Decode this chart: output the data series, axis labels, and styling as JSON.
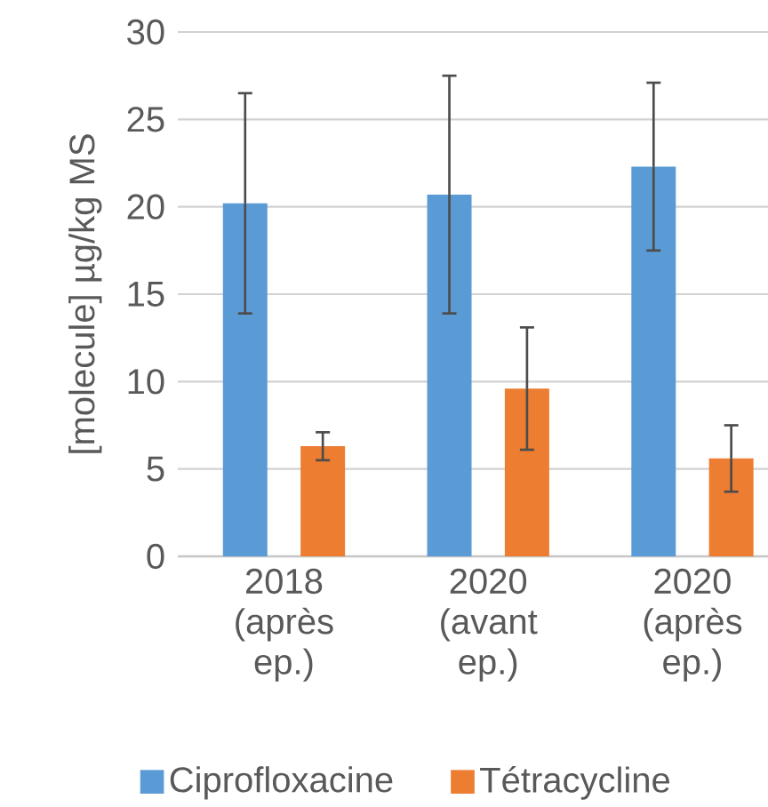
{
  "chart_data": {
    "type": "bar",
    "ylabel": "[molecule] µg/kg MS",
    "categories": [
      "2018 (après ep.)",
      "2020 (avant ep.)",
      "2020 (après ep.)"
    ],
    "series": [
      {
        "name": "Ciprofloxacine",
        "color": "#5b9bd5",
        "values": [
          20.2,
          20.7,
          22.3
        ],
        "errors": [
          6.3,
          6.8,
          4.8
        ]
      },
      {
        "name": "Tétracycline",
        "color": "#ed7d31",
        "values": [
          6.3,
          9.6,
          5.6
        ],
        "errors": [
          0.8,
          3.5,
          1.9
        ]
      }
    ],
    "ylim": [
      0,
      30
    ],
    "yticks": [
      0,
      5,
      10,
      15,
      20,
      25,
      30
    ],
    "grid": "y",
    "legend": "bottom"
  }
}
